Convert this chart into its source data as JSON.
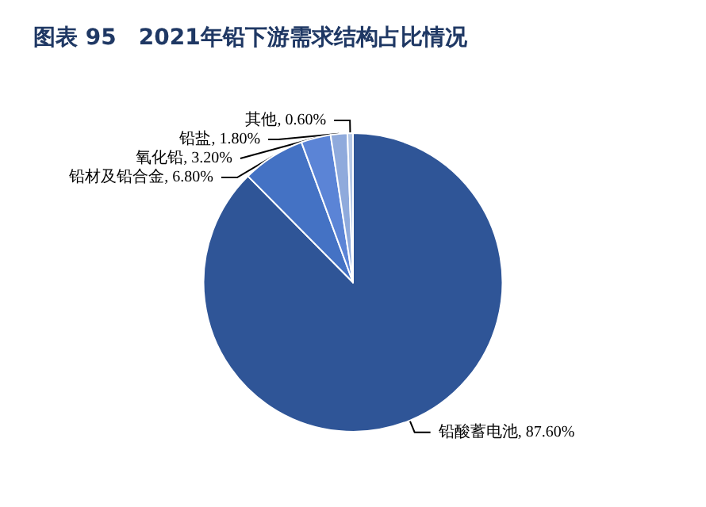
{
  "chart_data": {
    "type": "pie",
    "title": "图表 95　2021年铅下游需求结构占比情况",
    "categories": [
      "铅酸蓄电池",
      "铅材及铅合金",
      "氧化铅",
      "铅盐",
      "其他"
    ],
    "values": [
      87.6,
      6.8,
      3.2,
      1.8,
      0.6
    ],
    "value_labels": [
      "87.60%",
      "6.80%",
      "3.20%",
      "1.80%",
      "0.60%"
    ],
    "colors": [
      "#2f5597",
      "#4472c4",
      "#5b84d6",
      "#8faadc",
      "#b4c7e7"
    ],
    "legend": false
  }
}
